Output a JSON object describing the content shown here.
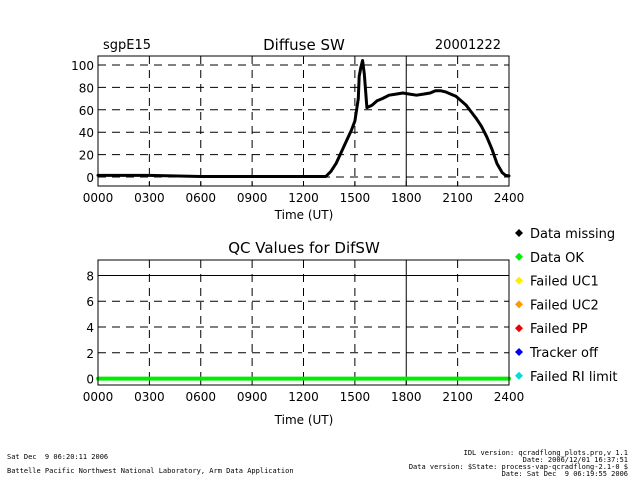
{
  "chart_data": [
    {
      "type": "line",
      "title": "Diffuse SW",
      "site_label": "sgpE15",
      "date_label": "20001222",
      "xlabel": "Time (UT)",
      "xticks": [
        "0000",
        "0300",
        "0600",
        "0900",
        "1200",
        "1500",
        "1800",
        "2100",
        "2400"
      ],
      "xlim": [
        0,
        24
      ],
      "yticks": [
        "0",
        "20",
        "40",
        "60",
        "80",
        "100"
      ],
      "ylim": [
        -8,
        108
      ],
      "grid": true,
      "series": [
        {
          "color": "#000000",
          "x": [
            0,
            3,
            6,
            9,
            12,
            13.3,
            13.6,
            13.9,
            14.2,
            14.5,
            14.8,
            15.0,
            15.1,
            15.2,
            15.25,
            15.35,
            15.45,
            15.55,
            15.7,
            16.0,
            16.3,
            16.6,
            17.0,
            17.4,
            17.8,
            18.2,
            18.6,
            19.0,
            19.4,
            19.7,
            20.0,
            20.3,
            20.6,
            20.9,
            21.2,
            21.5,
            21.8,
            22.1,
            22.4,
            22.7,
            23.0,
            23.3,
            23.6,
            23.8,
            24.0
          ],
          "y": [
            1.5,
            1.5,
            0.5,
            0.5,
            0.5,
            0.5,
            5,
            12,
            22,
            32,
            42,
            50,
            60,
            70,
            90,
            98,
            104,
            92,
            62,
            64,
            68,
            70,
            73,
            74,
            75,
            74,
            73,
            74,
            75,
            77,
            77,
            76,
            74,
            72,
            68,
            64,
            58,
            52,
            45,
            36,
            25,
            12,
            4,
            1.5,
            1
          ]
        }
      ]
    },
    {
      "type": "line",
      "title": "QC Values for DifSW",
      "xlabel": "Time (UT)",
      "xticks": [
        "0000",
        "0300",
        "0600",
        "0900",
        "1200",
        "1500",
        "1800",
        "2100",
        "2400"
      ],
      "xlim": [
        0,
        24
      ],
      "yticks": [
        "0",
        "2",
        "4",
        "6",
        "8"
      ],
      "ylim": [
        -0.5,
        9.2
      ],
      "grid": true,
      "series": [
        {
          "color": "#00ee00",
          "x": [
            0,
            24
          ],
          "y": [
            0,
            0
          ]
        }
      ]
    }
  ],
  "legend": [
    {
      "label": "Data missing",
      "color": "#000000"
    },
    {
      "label": "Data OK",
      "color": "#00ee00"
    },
    {
      "label": "Failed UC1",
      "color": "#ffee00"
    },
    {
      "label": "Failed UC2",
      "color": "#ff9900"
    },
    {
      "label": "Failed PP",
      "color": "#ee0000"
    },
    {
      "label": "Tracker off",
      "color": "#0000ee"
    },
    {
      "label": "Failed RI limit",
      "color": "#00dddd"
    }
  ],
  "footer": {
    "left_line1": "Sat Dec  9 06:20:11 2006",
    "left_line2": "Battelle Pacific Northwest National Laboratory, Arm Data Application",
    "right_line1": "IDL version: qcradflong_plots.pro,v 1.1",
    "right_line2": "Date: 2006/12/01 16:37:51",
    "right_line3": "Data version: $State: process-vap-qcradflong-2.1-0 $",
    "right_line4": "Date: Sat Dec  9 06:19:55 2006"
  }
}
